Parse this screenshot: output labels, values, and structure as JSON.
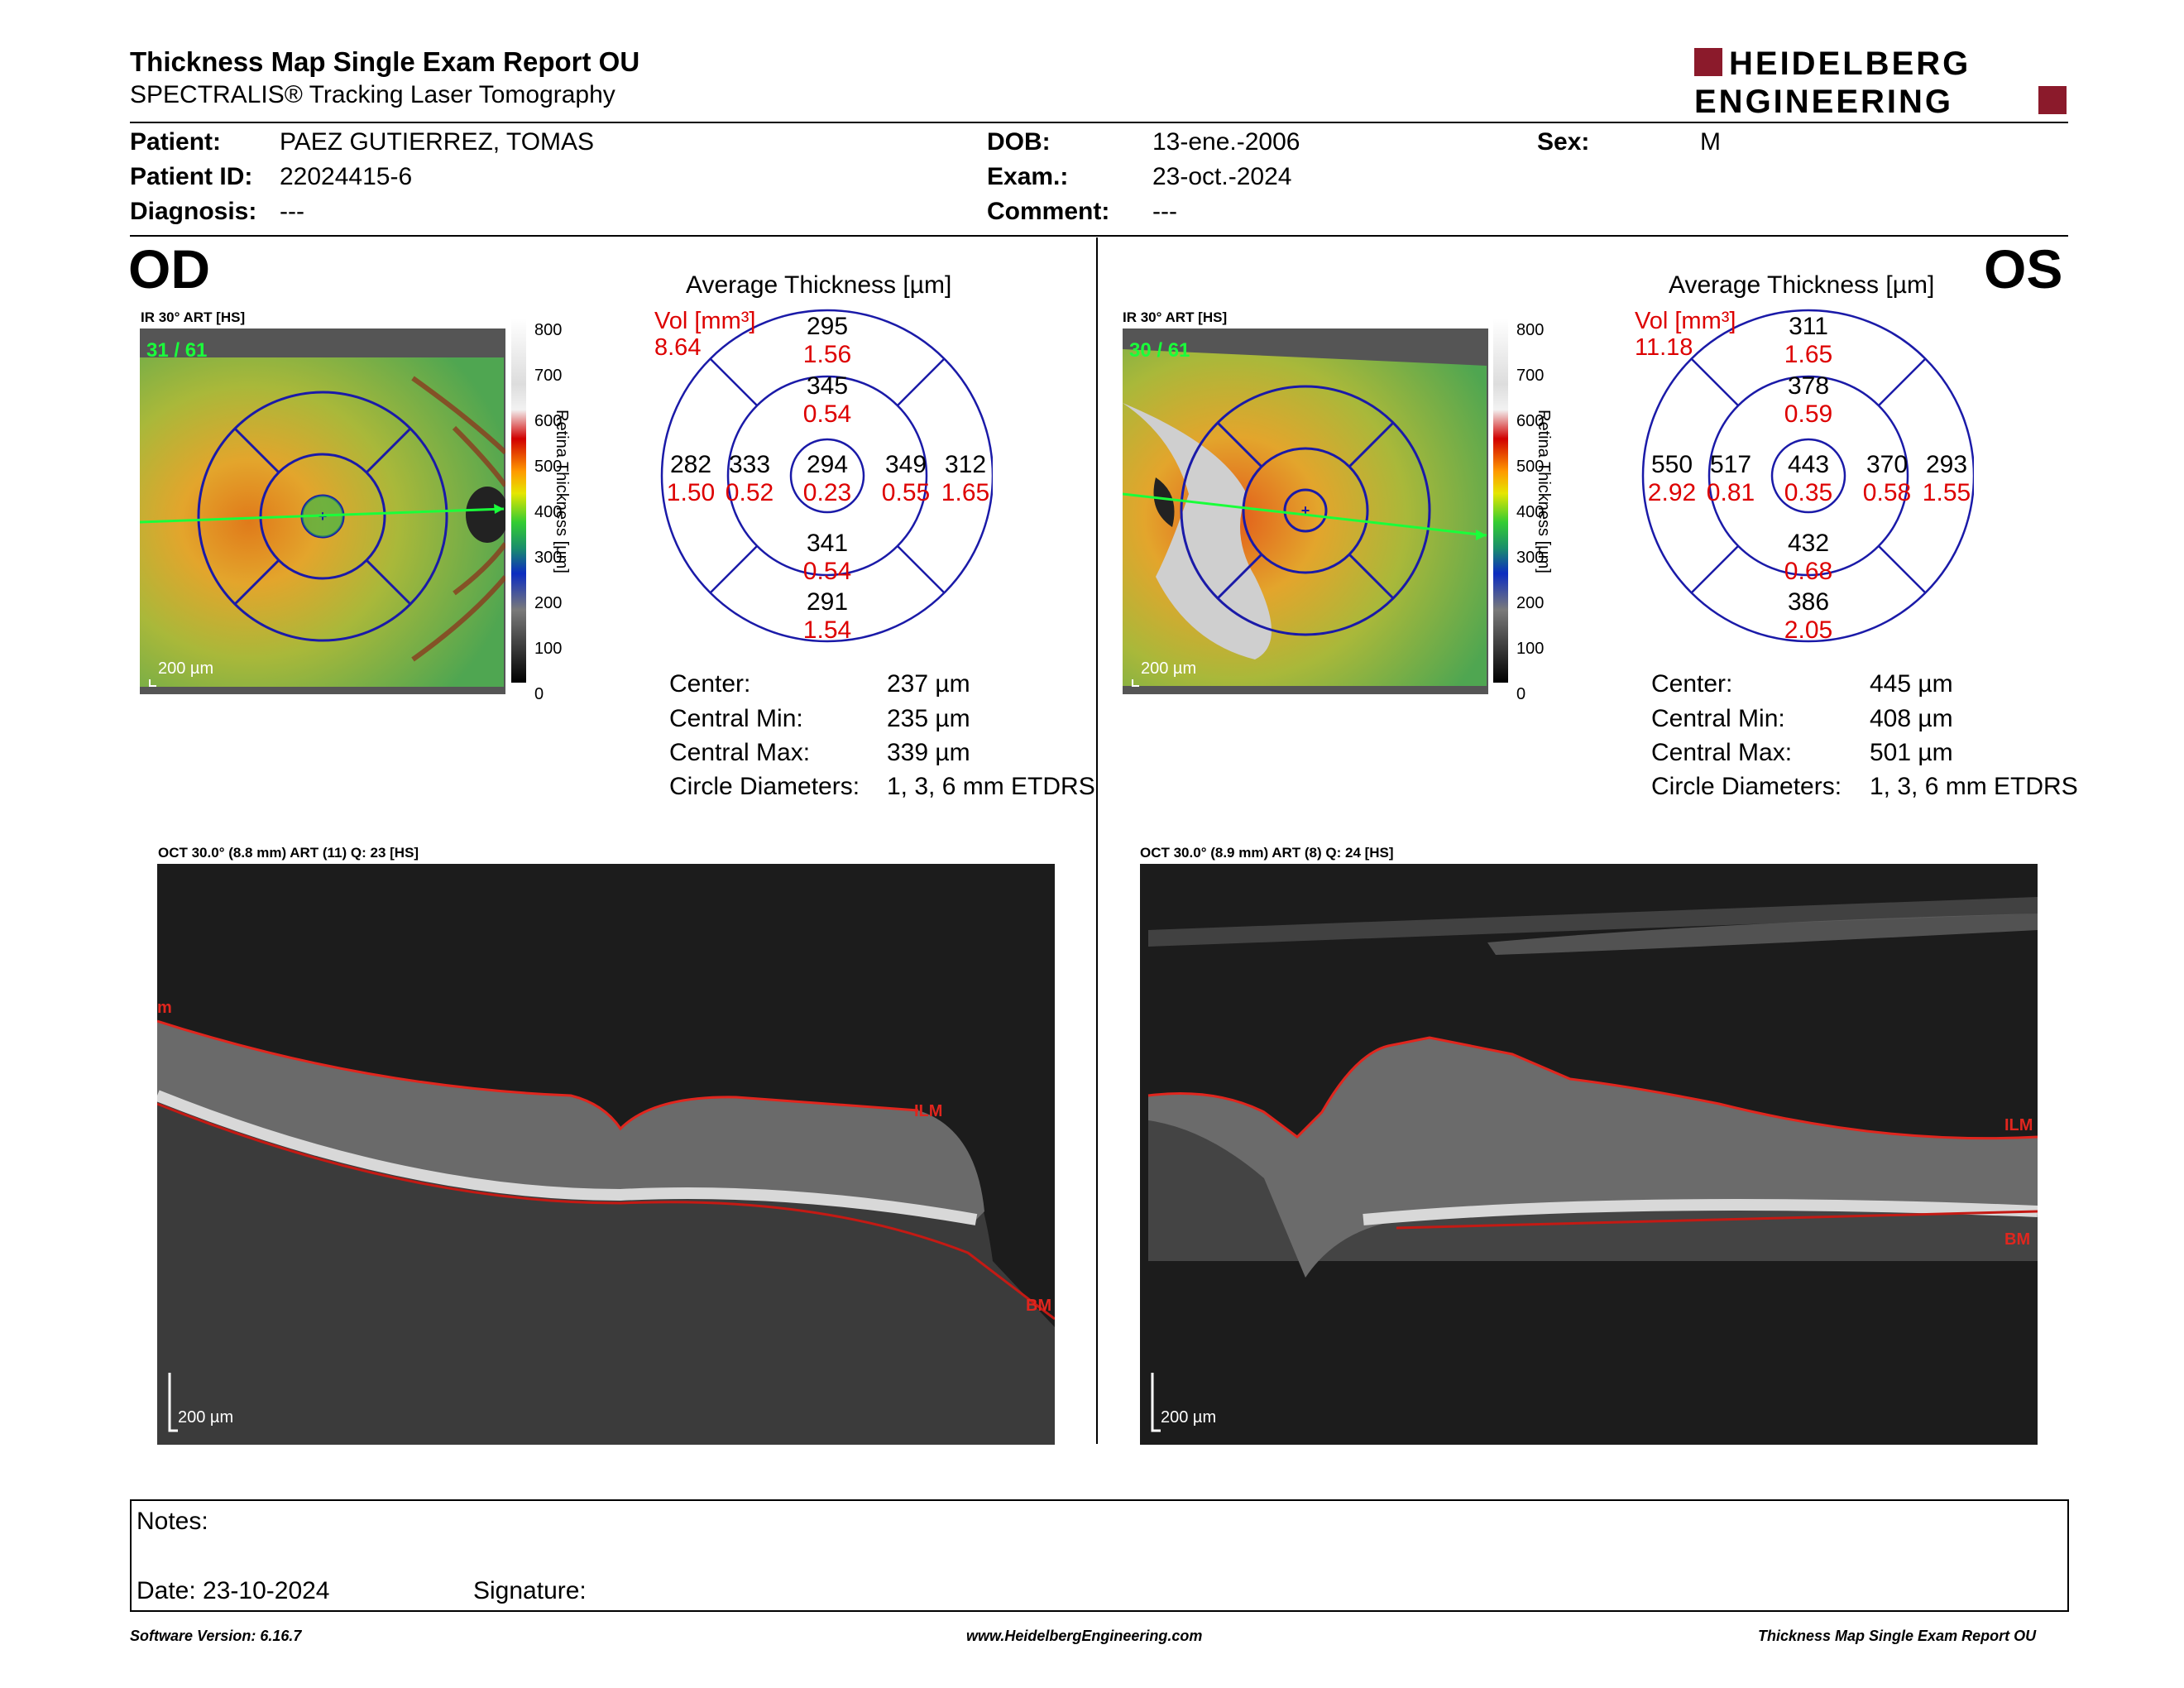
{
  "header": {
    "title": "Thickness Map Single Exam Report OU",
    "subtitle": "SPECTRALIS® Tracking Laser Tomography",
    "logo_line1": "HEIDELBERG",
    "logo_line2": "ENGINEERING",
    "logo_color": "#8b1a2b"
  },
  "patient": {
    "patient_label": "Patient:",
    "patient_value": "PAEZ GUTIERREZ, TOMAS",
    "id_label": "Patient ID:",
    "id_value": "22024415-6",
    "diagnosis_label": "Diagnosis:",
    "diagnosis_value": "---",
    "dob_label": "DOB:",
    "dob_value": "13-ene.-2006",
    "exam_label": "Exam.:",
    "exam_value": "23-oct.-2024",
    "comment_label": "Comment:",
    "comment_value": "---",
    "sex_label": "Sex:",
    "sex_value": "M"
  },
  "od": {
    "eye_label": "OD",
    "ir_title": "IR 30° ART [HS]",
    "frame": "31 / 61",
    "scale": "200 µm",
    "avg_title": "Average Thickness [µm]",
    "vol_label": "Vol [mm³]",
    "vol_total": "8.64",
    "grid": {
      "outer_top": "295",
      "outer_top_vol": "1.56",
      "inner_top": "345",
      "inner_top_vol": "0.54",
      "outer_left": "282",
      "outer_left_vol": "1.50",
      "inner_left": "333",
      "inner_left_vol": "0.52",
      "center": "294",
      "center_vol": "0.23",
      "inner_right": "349",
      "inner_right_vol": "0.55",
      "outer_right": "312",
      "outer_right_vol": "1.65",
      "inner_bottom": "341",
      "inner_bottom_vol": "0.54",
      "outer_bottom": "291",
      "outer_bottom_vol": "1.54"
    },
    "center_label": "Center:",
    "center_value": "237 µm",
    "cmin_label": "Central Min:",
    "cmin_value": "235 µm",
    "cmax_label": "Central Max:",
    "cmax_value": "339 µm",
    "diam_label": "Circle Diameters:",
    "diam_value": "1, 3, 6 mm ETDRS",
    "oct_title": "OCT 30.0° (8.8 mm) ART (11) Q: 23 [HS]",
    "oct_scale": "200 µm",
    "ilm": "ILM",
    "bm": "BM"
  },
  "os": {
    "eye_label": "OS",
    "ir_title": "IR 30° ART [HS]",
    "frame": "30 / 61",
    "scale": "200 µm",
    "avg_title": "Average Thickness [µm]",
    "vol_label": "Vol [mm³]",
    "vol_total": "11.18",
    "grid": {
      "outer_top": "311",
      "outer_top_vol": "1.65",
      "inner_top": "378",
      "inner_top_vol": "0.59",
      "outer_left": "550",
      "outer_left_vol": "2.92",
      "inner_left": "517",
      "inner_left_vol": "0.81",
      "center": "443",
      "center_vol": "0.35",
      "inner_right": "370",
      "inner_right_vol": "0.58",
      "outer_right": "293",
      "outer_right_vol": "1.55",
      "inner_bottom": "432",
      "inner_bottom_vol": "0.68",
      "outer_bottom": "386",
      "outer_bottom_vol": "2.05"
    },
    "center_label": "Center:",
    "center_value": "445 µm",
    "cmin_label": "Central Min:",
    "cmin_value": "408 µm",
    "cmax_label": "Central Max:",
    "cmax_value": "501 µm",
    "diam_label": "Circle Diameters:",
    "diam_value": "1, 3, 6 mm ETDRS",
    "oct_title": "OCT 30.0° (8.9 mm) ART (8) Q: 24 [HS]",
    "oct_scale": "200 µm",
    "ilm": "ILM",
    "bm": "BM"
  },
  "colorbar": {
    "ticks": [
      "800",
      "700",
      "600",
      "500",
      "400",
      "300",
      "200",
      "100",
      "0"
    ],
    "label": "Retina Thickness [µm]"
  },
  "notes": {
    "notes_label": "Notes:",
    "date_label": "Date: 23-10-2024",
    "signature_label": "Signature:"
  },
  "footer": {
    "software": "Software Version: 6.16.7",
    "website": "www.HeidelbergEngineering.com",
    "report": "Thickness Map Single Exam Report OU"
  }
}
